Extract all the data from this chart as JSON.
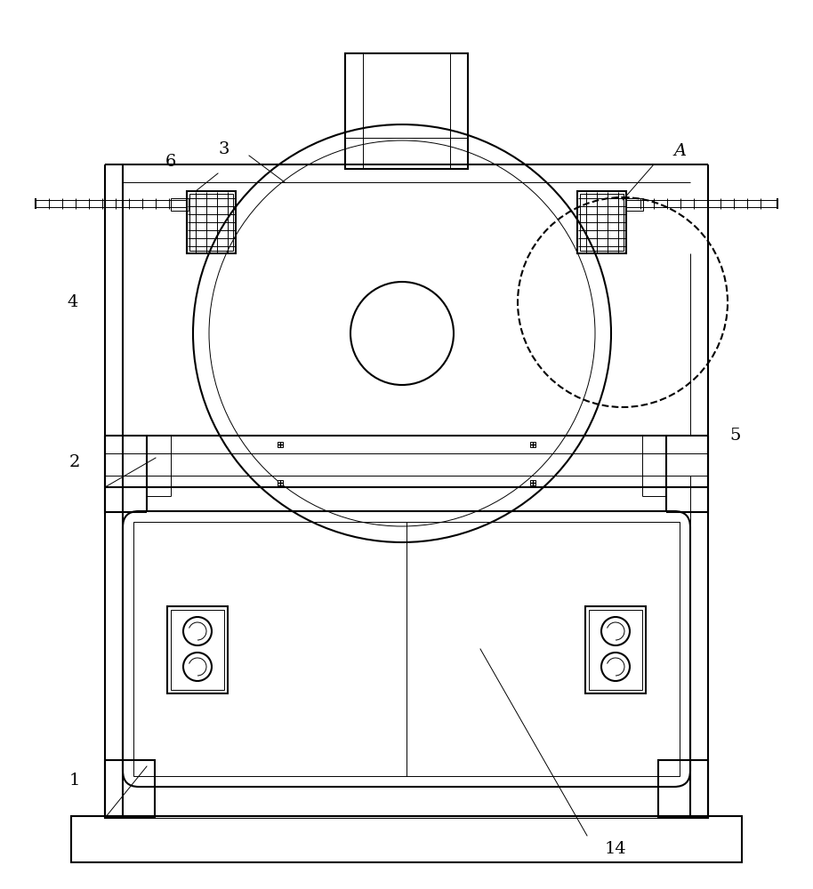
{
  "bg_color": "#ffffff",
  "lc": "#000000",
  "lw": 1.5,
  "lw_thin": 0.7
}
